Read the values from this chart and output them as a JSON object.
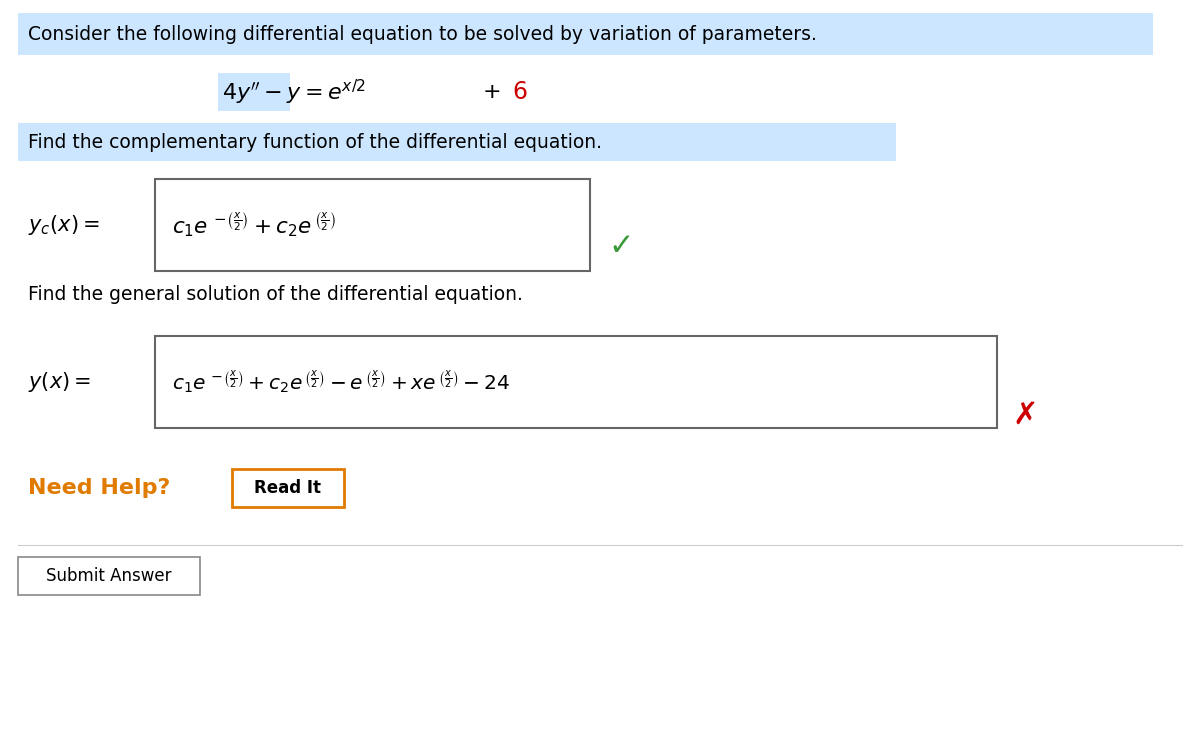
{
  "bg_color": "#ffffff",
  "header_bg": "#cce6ff",
  "header_text": "Consider the following differential equation to be solved by variation of parameters.",
  "eq_main": "4y’’ − y = e^{x/2} + 6",
  "step1_header_bg": "#cce6ff",
  "step1_header": "Find the complementary function of the differential equation.",
  "step2_header": "Find the general solution of the differential equation.",
  "need_help_color": "#e07b00",
  "need_help_text": "Need Help?",
  "read_it_bg": "#e07b00",
  "read_it_text": "Read It",
  "submit_text": "Submit Answer",
  "checkmark_color": "#3a9a3a",
  "cross_color": "#cc0000",
  "box_border": "#888888",
  "text_color": "#000000",
  "highlight_6_color": "#cc0000",
  "highlight_4y_bg": "#cce6ff"
}
